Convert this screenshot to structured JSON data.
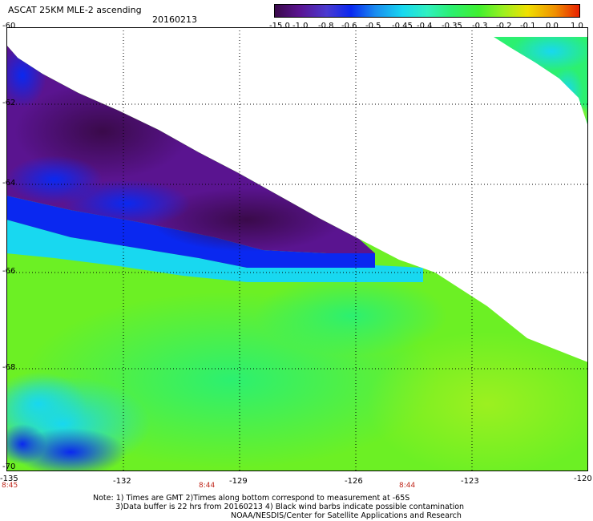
{
  "header": {
    "title": "ASCAT 25KM MLE-2 ascending",
    "date": "20160213"
  },
  "colorbar": {
    "labels": [
      "-15.0",
      "-1.0",
      "-0.8",
      "-0.6",
      "-0.5",
      "-0.45",
      "-0.4",
      "-0.35",
      "-0.3",
      "-0.2",
      "-0.1",
      "0.0",
      "1.0"
    ],
    "colors": [
      "#3a0a4a",
      "#5a1490",
      "#4b3ad0",
      "#0a28f0",
      "#1a8cf0",
      "#18d8f0",
      "#30f0c0",
      "#2cf070",
      "#40f030",
      "#9cf020",
      "#f0e000",
      "#f09000",
      "#e82000"
    ]
  },
  "axes": {
    "lat_ticks": [
      "-60",
      "-62",
      "-64",
      "-66",
      "-68",
      "-70"
    ],
    "lon_ticks": [
      "-135",
      "-132",
      "-129",
      "-126",
      "-123",
      "-120"
    ],
    "times": [
      "8:45",
      "8:44",
      "8:44"
    ]
  },
  "map_data": {
    "type": "swath",
    "lat_range": [
      -70,
      -60
    ],
    "lon_range": [
      -135,
      -120
    ]
  },
  "notes": {
    "line1": "Note: 1) Times are GMT 2)Times along bottom correspond to measurement at -65S",
    "line2": "3)Data buffer is 22 hrs from 20160213 4) Black wind barbs indicate possible contamination",
    "line3": "NOAA/NESDIS/Center for Satellite Applications and Research"
  }
}
